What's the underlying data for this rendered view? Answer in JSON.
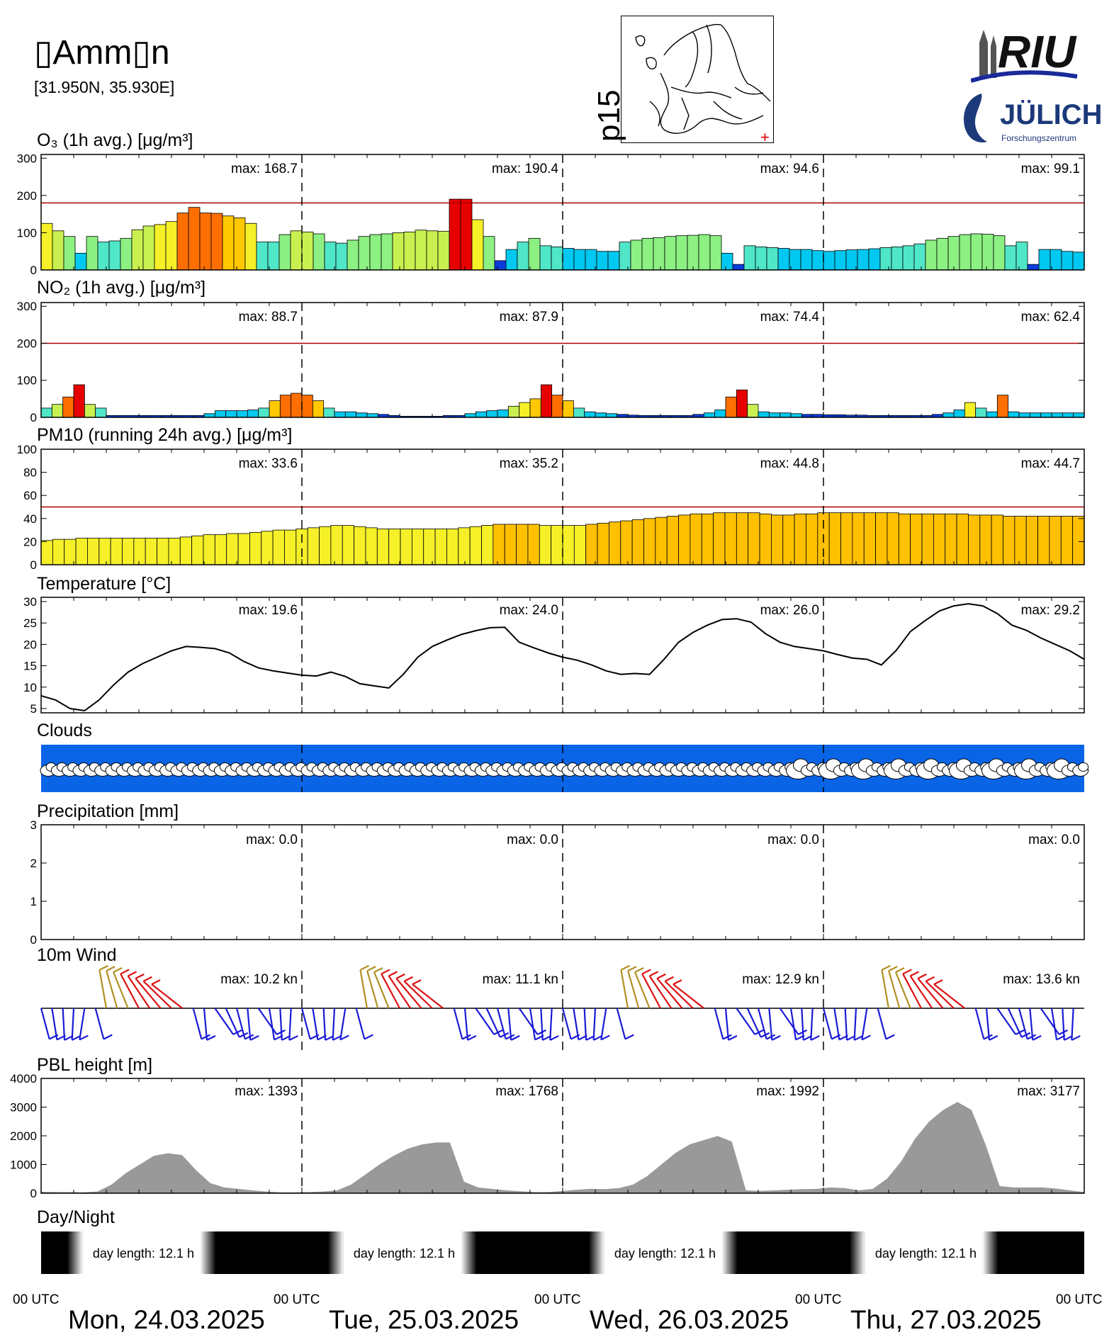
{
  "station": {
    "name": "▯Amm▯n",
    "coords": "[31.950N, 35.930E]",
    "map_label": "p15"
  },
  "logos": {
    "riu": "RIU",
    "julich": "JÜLICH",
    "julich_sub": "Forschungszentrum"
  },
  "panels": {
    "o3": {
      "title": "O₃ (1h avg.) [μg/m³]",
      "max_labels": [
        "max: 168.7",
        "max: 190.4",
        "max:  94.6",
        "max:  99.1"
      ]
    },
    "no2": {
      "title": "NO₂ (1h avg.) [μg/m³]",
      "max_labels": [
        "max:  88.7",
        "max:  87.9",
        "max:  74.4",
        "max:  62.4"
      ]
    },
    "pm10": {
      "title": "PM10 (running 24h avg.) [μg/m³]",
      "max_labels": [
        "max:  33.6",
        "max:  35.2",
        "max:  44.8",
        "max:  44.7"
      ]
    },
    "temp": {
      "title": "Temperature [°C]",
      "max_labels": [
        "max:  19.6",
        "max:  24.0",
        "max:  26.0",
        "max:  29.2"
      ]
    },
    "clouds": {
      "title": "Clouds"
    },
    "precip": {
      "title": "Precipitation [mm]",
      "max_labels": [
        "max:   0.0",
        "max:   0.0",
        "max:   0.0",
        "max:   0.0"
      ]
    },
    "wind": {
      "title": "10m Wind",
      "max_labels": [
        "max:  10.2 kn",
        "max:  11.1 kn",
        "max:  12.9 kn",
        "max:  13.6 kn"
      ]
    },
    "pbl": {
      "title": "PBL height [m]",
      "max_labels": [
        "max:  1393",
        "max:  1768",
        "max:  1992",
        "max:  3177"
      ]
    },
    "daynight": {
      "title": "Day/Night",
      "labels": [
        "day length:  12.1 h",
        "day length:  12.1 h",
        "day length:  12.1 h",
        "day length:  12.1 h"
      ]
    }
  },
  "time_axis": {
    "utc_label": "00 UTC",
    "days": [
      "Mon, 24.03.2025",
      "Tue, 25.03.2025",
      "Wed, 26.03.2025",
      "Thu, 27.03.2025"
    ]
  },
  "colors": {
    "limit_line": "#aa0000",
    "cloud_band": "#0a64e6",
    "pbl_fill": "#999999",
    "wind_main": "#1a1ad6"
  },
  "chart_data": [
    {
      "id": "o3",
      "type": "bar",
      "x": "hours since 00 UTC Mon 24.03.2025 (3-hourly bins)",
      "ylim": [
        0,
        310
      ],
      "yticks": [
        0,
        100,
        200,
        300
      ],
      "limit": 180,
      "values": [
        125,
        105,
        90,
        45,
        90,
        75,
        78,
        85,
        108,
        118,
        122,
        130,
        153,
        168,
        153,
        152,
        145,
        140,
        125,
        75,
        75,
        95,
        105,
        102,
        97,
        75,
        72,
        80,
        90,
        95,
        97,
        100,
        102,
        107,
        105,
        104,
        190,
        190,
        135,
        90,
        25,
        55,
        75,
        85,
        65,
        62,
        58,
        55,
        55,
        50,
        50,
        75,
        80,
        85,
        87,
        90,
        92,
        93,
        95,
        92,
        45,
        15,
        65,
        62,
        60,
        58,
        55,
        55,
        52,
        50,
        52,
        54,
        55,
        57,
        60,
        62,
        65,
        70,
        80,
        85,
        90,
        95,
        97,
        96,
        92,
        65,
        75,
        15,
        55,
        55,
        50,
        48
      ]
    },
    {
      "id": "no2",
      "type": "bar",
      "ylim": [
        0,
        310
      ],
      "yticks": [
        0,
        100,
        200,
        300
      ],
      "limit": 200,
      "values": [
        25,
        35,
        55,
        88,
        35,
        25,
        5,
        5,
        5,
        5,
        5,
        5,
        5,
        5,
        5,
        10,
        18,
        18,
        18,
        20,
        25,
        45,
        60,
        65,
        60,
        45,
        25,
        15,
        15,
        12,
        10,
        8,
        5,
        3,
        3,
        3,
        3,
        5,
        5,
        10,
        15,
        18,
        20,
        30,
        40,
        50,
        88,
        60,
        45,
        25,
        15,
        12,
        10,
        8,
        6,
        5,
        5,
        5,
        5,
        5,
        8,
        12,
        20,
        55,
        74,
        35,
        15,
        12,
        12,
        10,
        8,
        8,
        7,
        7,
        6,
        6,
        5,
        5,
        5,
        5,
        5,
        5,
        8,
        12,
        20,
        40,
        25,
        15,
        60,
        15,
        12,
        12,
        12,
        12,
        12,
        12
      ]
    },
    {
      "id": "pm10",
      "type": "bar",
      "ylim": [
        0,
        100
      ],
      "yticks": [
        0,
        20,
        40,
        60,
        80,
        100
      ],
      "limit": 50,
      "values": [
        21,
        22,
        22,
        23,
        23,
        23,
        23,
        23,
        23,
        23,
        23,
        23,
        24,
        25,
        26,
        26,
        27,
        27,
        28,
        29,
        30,
        30,
        31,
        32,
        33,
        34,
        34,
        33,
        32,
        31,
        31,
        31,
        31,
        31,
        31,
        31,
        32,
        33,
        34,
        35,
        35,
        35,
        35,
        34,
        34,
        34,
        34,
        35,
        36,
        37,
        38,
        39,
        40,
        41,
        42,
        43,
        44,
        44,
        45,
        45,
        45,
        45,
        44,
        43,
        43,
        44,
        44,
        45,
        45,
        45,
        45,
        45,
        45,
        45,
        44,
        44,
        44,
        44,
        44,
        44,
        43,
        43,
        43,
        42,
        42,
        42,
        42,
        42,
        42,
        42
      ]
    },
    {
      "id": "temp",
      "type": "line",
      "ylim": [
        4,
        31
      ],
      "yticks": [
        5,
        10,
        15,
        20,
        25,
        30
      ],
      "values": [
        8,
        7,
        5,
        4.5,
        7,
        10.5,
        13.5,
        15.5,
        17,
        18.5,
        19.5,
        19.3,
        19,
        18,
        16,
        14.5,
        13.8,
        13.3,
        12.8,
        12.6,
        13.5,
        12.5,
        10.8,
        10.3,
        9.8,
        13,
        17,
        19.5,
        21,
        22.3,
        23.2,
        23.9,
        24,
        20.5,
        19.2,
        18,
        17,
        16.3,
        15.2,
        13.8,
        13,
        13.2,
        13,
        16.5,
        20.5,
        22.8,
        24.5,
        25.8,
        26,
        25.2,
        22.5,
        20.5,
        19.5,
        19,
        18.5,
        17.6,
        16.8,
        16.5,
        15.2,
        18.5,
        23,
        25.5,
        27.8,
        29,
        29.5,
        29,
        27.2,
        24.5,
        23.3,
        21.5,
        20,
        18.5,
        16.5
      ]
    },
    {
      "id": "precip",
      "type": "bar",
      "ylim": [
        0,
        3
      ],
      "yticks": [
        0,
        1,
        2,
        3
      ],
      "values": [
        0,
        0,
        0,
        0
      ]
    },
    {
      "id": "pbl",
      "type": "area",
      "ylim": [
        0,
        4000
      ],
      "yticks": [
        0,
        1000,
        2000,
        3000,
        4000
      ],
      "values": [
        50,
        40,
        40,
        30,
        60,
        300,
        700,
        1000,
        1300,
        1393,
        1330,
        800,
        350,
        200,
        150,
        100,
        60,
        30,
        30,
        40,
        60,
        100,
        300,
        650,
        1000,
        1300,
        1550,
        1700,
        1768,
        1768,
        400,
        200,
        150,
        100,
        70,
        40,
        40,
        80,
        120,
        150,
        140,
        180,
        300,
        600,
        1000,
        1400,
        1700,
        1850,
        1992,
        1800,
        100,
        80,
        100,
        120,
        140,
        150,
        200,
        180,
        100,
        150,
        500,
        1100,
        1900,
        2500,
        2900,
        3177,
        2900,
        1700,
        250,
        200,
        200,
        200,
        160,
        100,
        40
      ]
    },
    {
      "id": "daynight",
      "type": "heatmap",
      "day_length_h": [
        12.1,
        12.1,
        12.1,
        12.1
      ]
    }
  ]
}
